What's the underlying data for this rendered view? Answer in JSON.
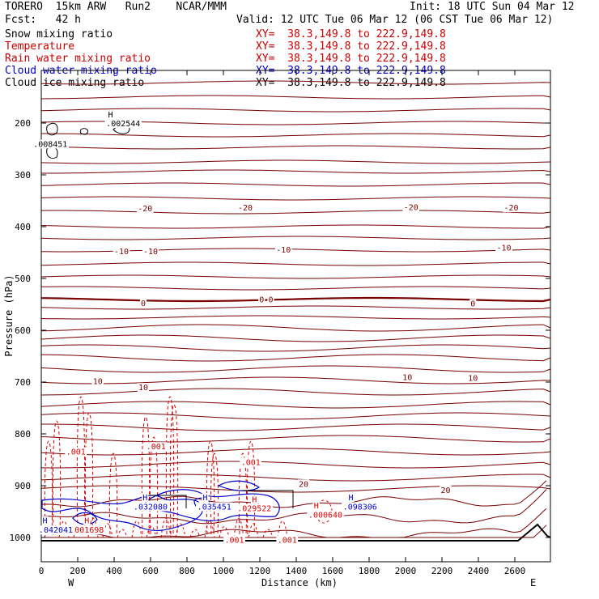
{
  "header": {
    "model": "TORERO  15km ARW   Run2    NCAR/MMM",
    "init": "Init: 18 UTC Sun 04 Mar 12",
    "fcst": "Fcst:   42 h",
    "valid": "Valid: 12 UTC Tue 06 Mar 12 (06 CST Tue 06 Mar 12)"
  },
  "legend": [
    {
      "label": "Snow mixing ratio",
      "xy": "",
      "color": "#000000"
    },
    {
      "label": "Temperature",
      "xy": "XY=  38.3,149.8 to 222.9,149.8",
      "color": "#cc0000"
    },
    {
      "label": "Rain water mixing ratio",
      "xy": "XY=  38.3,149.8 to 222.9,149.8",
      "color": "#cc0000"
    },
    {
      "label": "Cloud water mixing ratio",
      "xy": "XY=  38.3,149.8 to 222.9,149.8",
      "color": "#0000cc"
    },
    {
      "label": "Cloud ice mixing ratio",
      "xy": "XY=  38.3,149.8 to 222.9,149.8",
      "color": "#000000"
    }
  ],
  "snow_xy": "XY=  38.3,149.8 to 222.9,149.8",
  "colors": {
    "temperature": "#7a0000",
    "rain": "#dd0000",
    "cloud_water": "#0000cc",
    "ice": "#000000",
    "ground": "#000000"
  },
  "chart_data": {
    "type": "contour",
    "xlabel": "Distance (km)",
    "ylabel": "Pressure (hPa)",
    "xlim": [
      0,
      2750
    ],
    "ylim": [
      1050,
      100
    ],
    "x_ticks": [
      0,
      200,
      400,
      600,
      800,
      1000,
      1200,
      1400,
      1600,
      1800,
      2000,
      2200,
      2400,
      2600
    ],
    "y_ticks": [
      200,
      300,
      400,
      500,
      600,
      700,
      800,
      900,
      1000
    ],
    "west_label": "W",
    "east_label": "E",
    "temperature_labels": [
      {
        "text": "-20",
        "x": 570,
        "p": 370
      },
      {
        "text": "-20",
        "x": 1120,
        "p": 369
      },
      {
        "text": "-20",
        "x": 2030,
        "p": 368
      },
      {
        "text": "-20",
        "x": 2580,
        "p": 369
      },
      {
        "text": "-10",
        "x": 440,
        "p": 453
      },
      {
        "text": "-10",
        "x": 600,
        "p": 453
      },
      {
        "text": "-10",
        "x": 1330,
        "p": 450
      },
      {
        "text": "-10",
        "x": 2540,
        "p": 446
      },
      {
        "text": "0",
        "x": 560,
        "p": 553
      },
      {
        "text": "0",
        "x": 1210,
        "p": 546
      },
      {
        "text": "0",
        "x": 1260,
        "p": 546
      },
      {
        "text": "0",
        "x": 2370,
        "p": 554
      },
      {
        "text": "10",
        "x": 310,
        "p": 704
      },
      {
        "text": "10",
        "x": 560,
        "p": 716
      },
      {
        "text": "10",
        "x": 2010,
        "p": 696
      },
      {
        "text": "10",
        "x": 2370,
        "p": 698
      },
      {
        "text": "20",
        "x": 1440,
        "p": 902
      },
      {
        "text": "20",
        "x": 2220,
        "p": 914
      }
    ],
    "rain_labels": [
      {
        "text": ".001",
        "x": 190,
        "p": 840
      },
      {
        "text": ".001",
        "x": 630,
        "p": 830
      },
      {
        "text": ".001",
        "x": 1150,
        "p": 860
      },
      {
        "text": "H",
        "x": 250,
        "p": 973
      },
      {
        "text": ".001698",
        "x": 250,
        "p": 991
      },
      {
        "text": "H",
        "x": 1170,
        "p": 932
      },
      {
        "text": ".029522",
        "x": 1170,
        "p": 949
      },
      {
        "text": "H",
        "x": 1510,
        "p": 944
      },
      {
        "text": ".000640",
        "x": 1560,
        "p": 962
      },
      {
        "text": ".001",
        "x": 1060,
        "p": 1010
      },
      {
        "text": ".001",
        "x": 1350,
        "p": 1010
      }
    ],
    "cloud_water_labels": [
      {
        "text": "H",
        "x": 20,
        "p": 973
      },
      {
        "text": ".042041",
        "x": 80,
        "p": 991
      },
      {
        "text": "H",
        "x": 570,
        "p": 928
      },
      {
        "text": ".032080",
        "x": 600,
        "p": 946
      },
      {
        "text": "H",
        "x": 900,
        "p": 928
      },
      {
        "text": ".035451",
        "x": 950,
        "p": 946
      },
      {
        "text": "H",
        "x": 1700,
        "p": 928
      },
      {
        "text": ".098306",
        "x": 1750,
        "p": 946
      }
    ],
    "snow_labels": [
      {
        "text": "H",
        "x": 380,
        "p": 189
      },
      {
        "text": ".002544",
        "x": 450,
        "p": 206
      },
      {
        "text": ".008451",
        "x": 50,
        "p": 246
      }
    ]
  }
}
